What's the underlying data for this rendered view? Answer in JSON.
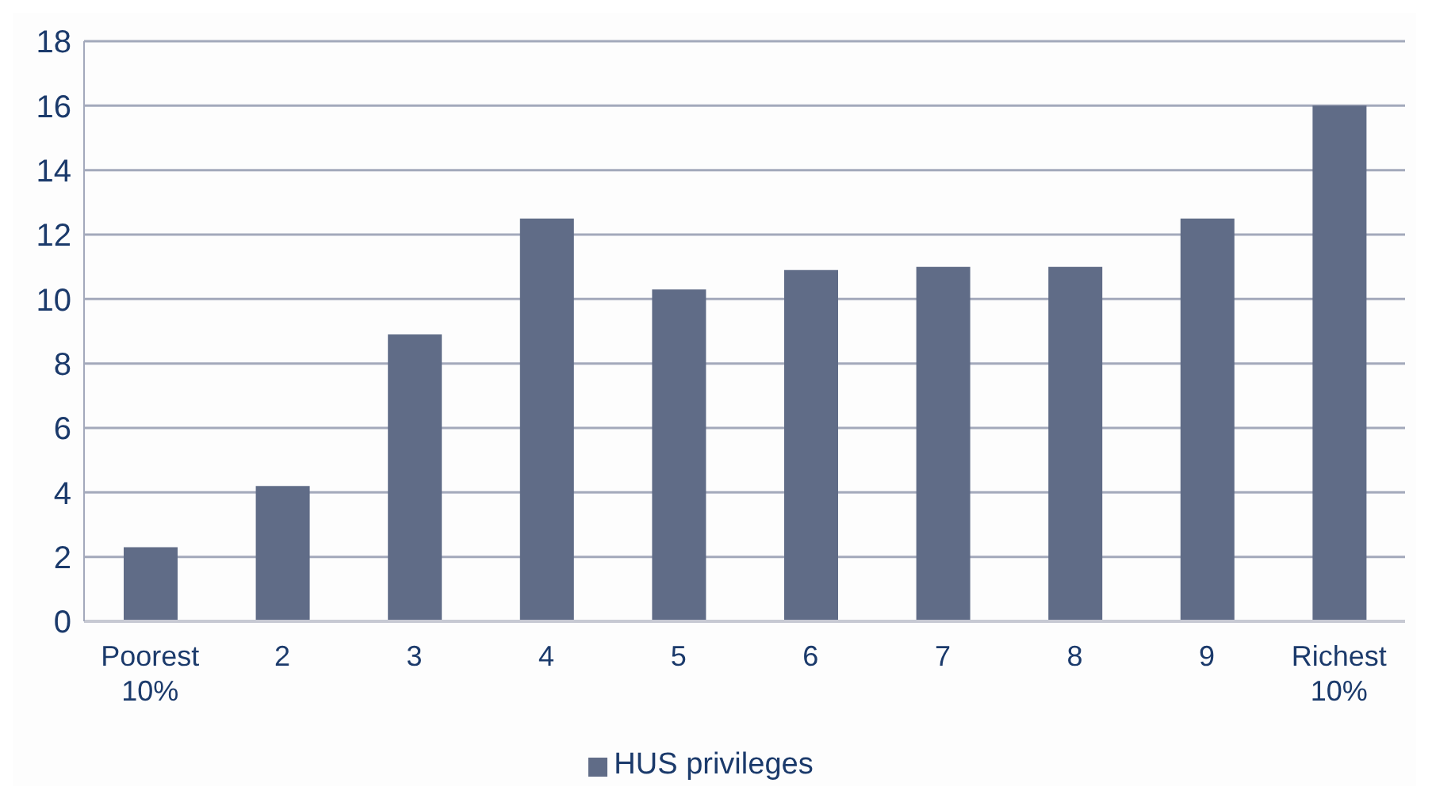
{
  "chart_data": {
    "type": "bar",
    "categories": [
      "Poorest\n10%",
      "2",
      "3",
      "4",
      "5",
      "6",
      "7",
      "8",
      "9",
      "Richest\n10%"
    ],
    "series": [
      {
        "name": "HUS privileges",
        "color": "#606c87",
        "values": [
          2.3,
          4.2,
          8.9,
          12.5,
          10.3,
          10.9,
          11.0,
          11.0,
          12.5,
          16.0
        ]
      }
    ],
    "ylim": [
      0,
      18
    ],
    "yticks": [
      0,
      2,
      4,
      6,
      8,
      10,
      12,
      14,
      16,
      18
    ],
    "grid": "y",
    "legend": "bottom"
  }
}
